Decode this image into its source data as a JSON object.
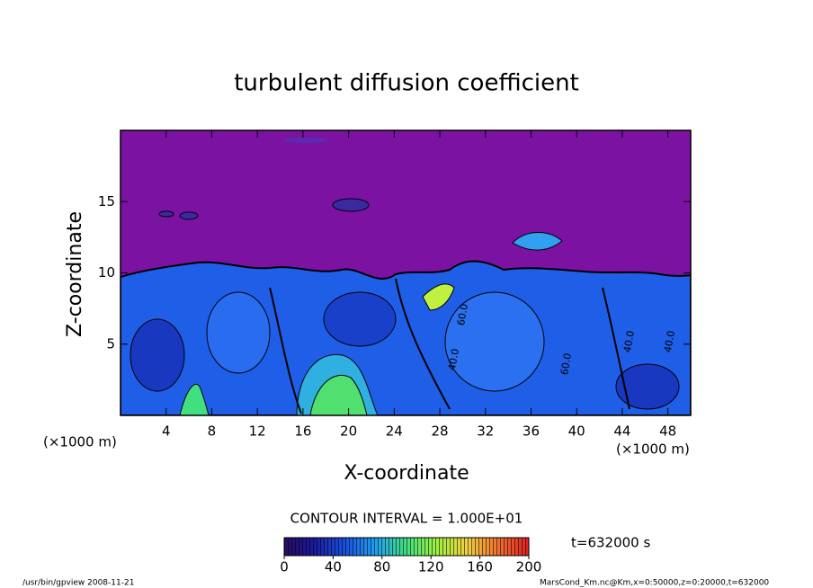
{
  "chart_data": {
    "type": "contour",
    "title": "turbulent diffusion coefficient",
    "xlabel": "X-coordinate",
    "ylabel": "Z-coordinate",
    "x_unit_label": "(×1000 m)",
    "xlim": [
      0,
      50
    ],
    "xticks": [
      4,
      8,
      12,
      16,
      20,
      24,
      28,
      32,
      36,
      40,
      44,
      48
    ],
    "ylim": [
      0,
      20
    ],
    "yticks": [
      5,
      10,
      15
    ],
    "background_color": "#7b12a1",
    "contour_interval_label": "CONTOUR INTERVAL = 1.000E+01",
    "time_label": "t=632000 s",
    "annotations": [
      "40.0",
      "60.0",
      "40.0",
      "60.0",
      "40.0"
    ],
    "colorbar": {
      "lim": [
        0,
        200
      ],
      "ticks": [
        0,
        40,
        80,
        120,
        160,
        200
      ],
      "colors": [
        "#2a0a60",
        "#1a1aa0",
        "#1a50e0",
        "#20a0f0",
        "#40e080",
        "#a0f040",
        "#f0d040",
        "#f07030",
        "#e02020"
      ]
    },
    "footer_left": "/usr/bin/gpview   2008-11-21",
    "footer_right": "MarsCond_Km.nc@Km,x=0:50000,z=0:20000,t=632000"
  }
}
